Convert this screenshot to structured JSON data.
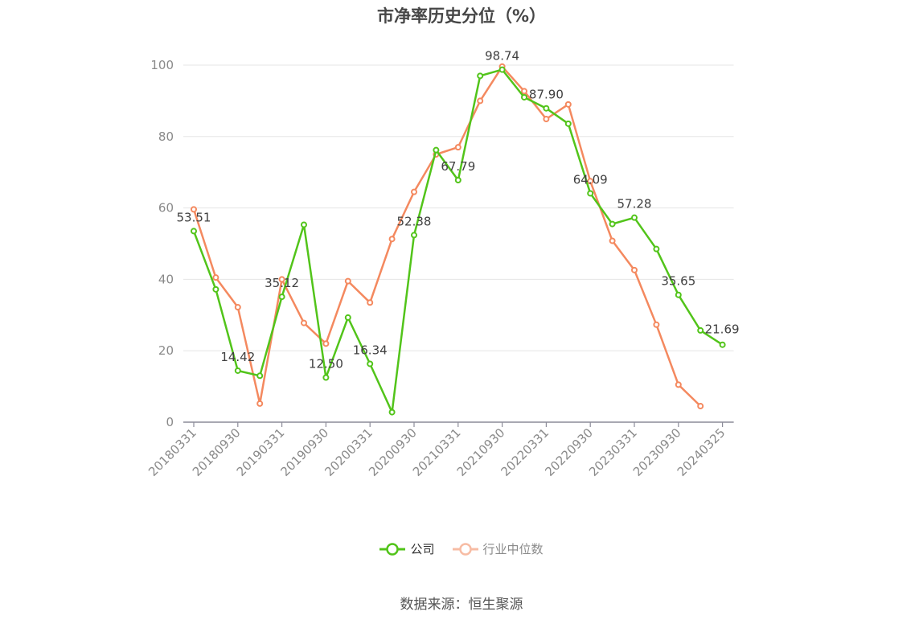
{
  "chart_data": {
    "type": "line",
    "title": "市净率历史分位（%）",
    "source": "数据来源：恒生聚源",
    "ylim": [
      0,
      100
    ],
    "yticks": [
      0,
      20,
      40,
      60,
      80,
      100
    ],
    "grid": true,
    "legend_position": "bottom",
    "x_tick_labels": [
      "20180331",
      "20180930",
      "20190331",
      "20190930",
      "20200331",
      "20200930",
      "20210331",
      "20210930",
      "20220331",
      "20220930",
      "20230331",
      "20230930",
      "20240325"
    ],
    "series": [
      {
        "name": "公司",
        "color": "#52c41a",
        "values": [
          53.51,
          37.2,
          14.42,
          13.0,
          35.12,
          55.3,
          12.5,
          29.3,
          16.34,
          2.8,
          52.38,
          76.2,
          67.79,
          97.0,
          98.74,
          91.0,
          87.9,
          83.6,
          64.09,
          55.5,
          57.28,
          48.5,
          35.65,
          25.7,
          21.69
        ],
        "labels": {
          "0": "53.51",
          "2": "14.42",
          "4": "35.12",
          "6": "12.50",
          "8": "16.34",
          "10": "52.38",
          "12": "67.79",
          "14": "98.74",
          "16": "87.90",
          "18": "64.09",
          "20": "57.28",
          "22": "35.65",
          "24": "21.69"
        }
      },
      {
        "name": "行业中位数",
        "color": "#f4895f",
        "values": [
          59.6,
          40.5,
          32.2,
          5.2,
          40.0,
          27.8,
          22.0,
          39.5,
          33.5,
          51.3,
          64.5,
          75.0,
          77.0,
          90.0,
          99.6,
          92.7,
          84.9,
          89.0,
          67.5,
          50.8,
          42.6,
          27.3,
          10.5,
          4.5,
          null
        ]
      }
    ]
  }
}
